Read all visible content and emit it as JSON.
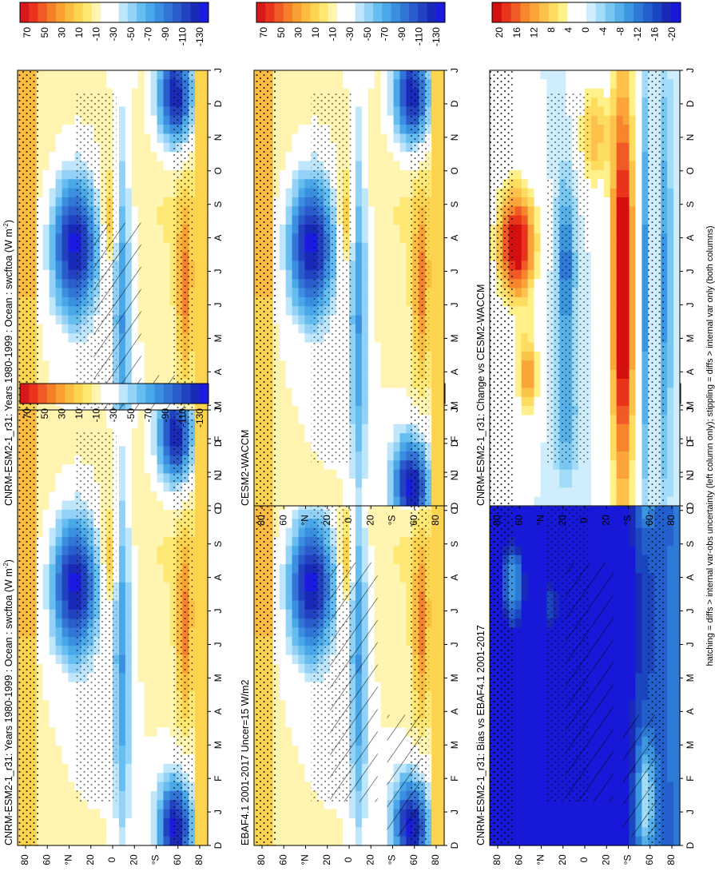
{
  "caption": "hatching = diffs > internal var-obs uncertainty (left column only); stippling = diffs > internal var only (both columns)",
  "colors": {
    "abs_scale": [
      "#d7191c",
      "#e8341f",
      "#f05a24",
      "#f57f2a",
      "#fa9f32",
      "#fcbc40",
      "#fdd44f",
      "#fee873",
      "#fff4b0",
      "#ffffff",
      "#ffffff",
      "#bfe6fb",
      "#93d2f6",
      "#66bdef",
      "#4aa8e8",
      "#3b8fe0",
      "#3275d6",
      "#2a5ccc",
      "#2242c2",
      "#1a2ab8",
      "#1a1ae0"
    ],
    "diff_scale": [
      "#d40f0f",
      "#e8341a",
      "#f05a24",
      "#f7852c",
      "#fba43a",
      "#fdc24a",
      "#fedc60",
      "#fff08a",
      "#ffffff",
      "#ffffff",
      "#cfeefd",
      "#a2dcf8",
      "#78c7f1",
      "#56b1ea",
      "#3c97e1",
      "#2d7ad7",
      "#2360cd",
      "#1b46c2",
      "#1a2ab8",
      "#1818d8"
    ]
  },
  "chart_data": [
    {
      "type": "heatmap",
      "title": "CNRM-ESM2-1_r31: Years 1980-1999 : Ocean : swcftoa (W m",
      "title_superscript": "-2",
      "title_suffix": ")",
      "x": [
        "D",
        "J",
        "F",
        "M",
        "A",
        "M",
        "J",
        "J",
        "A",
        "S",
        "O",
        "N",
        "D",
        "J"
      ],
      "y": [
        "80",
        "60",
        "°N",
        "20",
        "0",
        "20",
        "°S",
        "60",
        "80"
      ],
      "colorbar_ticks": [
        "70",
        "50",
        "30",
        "10",
        "-10",
        "-30",
        "-50",
        "-70",
        "-90",
        "-110",
        "-130"
      ],
      "orientation": "rotated-90-cw",
      "hatching": true,
      "stippling": true
    },
    {
      "type": "heatmap",
      "title": "CNRM-ESM2-1_r31: Years 1980-1999 : Ocean : swcftoa (W m",
      "title_superscript": "-2",
      "title_suffix": ")",
      "x": [
        "D",
        "J",
        "F",
        "M",
        "A",
        "M",
        "J",
        "J",
        "A",
        "S",
        "O",
        "N",
        "D",
        "J"
      ],
      "y": [
        "80",
        "60",
        "°N",
        "20",
        "0",
        "20",
        "°S",
        "60",
        "80"
      ],
      "colorbar_ticks": [
        "70",
        "50",
        "30",
        "10",
        "-10",
        "-30",
        "-50",
        "-70",
        "-90",
        "-110",
        "-130"
      ],
      "orientation": "rotated-90-cw",
      "hatching": false,
      "stippling": true
    },
    {
      "type": "heatmap",
      "title": "EBAF4.1 2001-2017 Uncer=15 W/m2",
      "title_superscript": "",
      "title_suffix": "",
      "x": [
        "D",
        "J",
        "F",
        "M",
        "A",
        "M",
        "J",
        "J",
        "A",
        "S",
        "O",
        "N",
        "D",
        "J"
      ],
      "y": [
        "80",
        "60",
        "°N",
        "20",
        "0",
        "20",
        "°S",
        "60",
        "80"
      ],
      "colorbar_ticks": [
        "70",
        "50",
        "30",
        "10",
        "-10",
        "-30",
        "-50",
        "-70",
        "-90",
        "-110",
        "-130"
      ],
      "orientation": "rotated-90-cw",
      "hatching": true,
      "stippling": true
    },
    {
      "type": "heatmap",
      "title": "CESM2-WACCM",
      "title_superscript": "",
      "title_suffix": "",
      "x": [
        "D",
        "J",
        "F",
        "M",
        "A",
        "M",
        "J",
        "J",
        "A",
        "S",
        "O",
        "N",
        "D",
        "J"
      ],
      "y": [
        "80",
        "60",
        "°N",
        "20",
        "0",
        "20",
        "°S",
        "60",
        "80"
      ],
      "colorbar_ticks": [
        "70",
        "50",
        "30",
        "10",
        "-10",
        "-30",
        "-50",
        "-70",
        "-90",
        "-110",
        "-130"
      ],
      "orientation": "rotated-90-cw",
      "hatching": false,
      "stippling": true
    },
    {
      "type": "heatmap",
      "title": "CNRM-ESM2-1_r31: Bias vs EBAF4.1 2001-2017",
      "title_superscript": "",
      "title_suffix": "",
      "x": [
        "D",
        "J",
        "F",
        "M",
        "A",
        "M",
        "J",
        "J",
        "A",
        "S",
        "O",
        "N",
        "D",
        "J"
      ],
      "y": [
        "80",
        "60",
        "°N",
        "20",
        "0",
        "20",
        "°S",
        "60",
        "80"
      ],
      "colorbar_ticks": [
        "20",
        "16",
        "12",
        "8",
        "4",
        "0",
        "-4",
        "-8",
        "-12",
        "-16",
        "-20"
      ],
      "orientation": "rotated-90-cw",
      "hatching": true,
      "stippling": true
    },
    {
      "type": "heatmap",
      "title": "CNRM-ESM2-1_r31: Change vs CESM2-WACCM",
      "title_superscript": "",
      "title_suffix": "",
      "x": [
        "D",
        "J",
        "F",
        "M",
        "A",
        "M",
        "J",
        "J",
        "A",
        "S",
        "O",
        "N",
        "D",
        "J"
      ],
      "y": [
        "80",
        "60",
        "°N",
        "20",
        "0",
        "20",
        "°S",
        "60",
        "80"
      ],
      "colorbar_ticks": [
        "20",
        "16",
        "12",
        "8",
        "4",
        "0",
        "-4",
        "-8",
        "-12",
        "-16",
        "-20"
      ],
      "orientation": "rotated-90-cw",
      "hatching": false,
      "stippling": true
    }
  ]
}
